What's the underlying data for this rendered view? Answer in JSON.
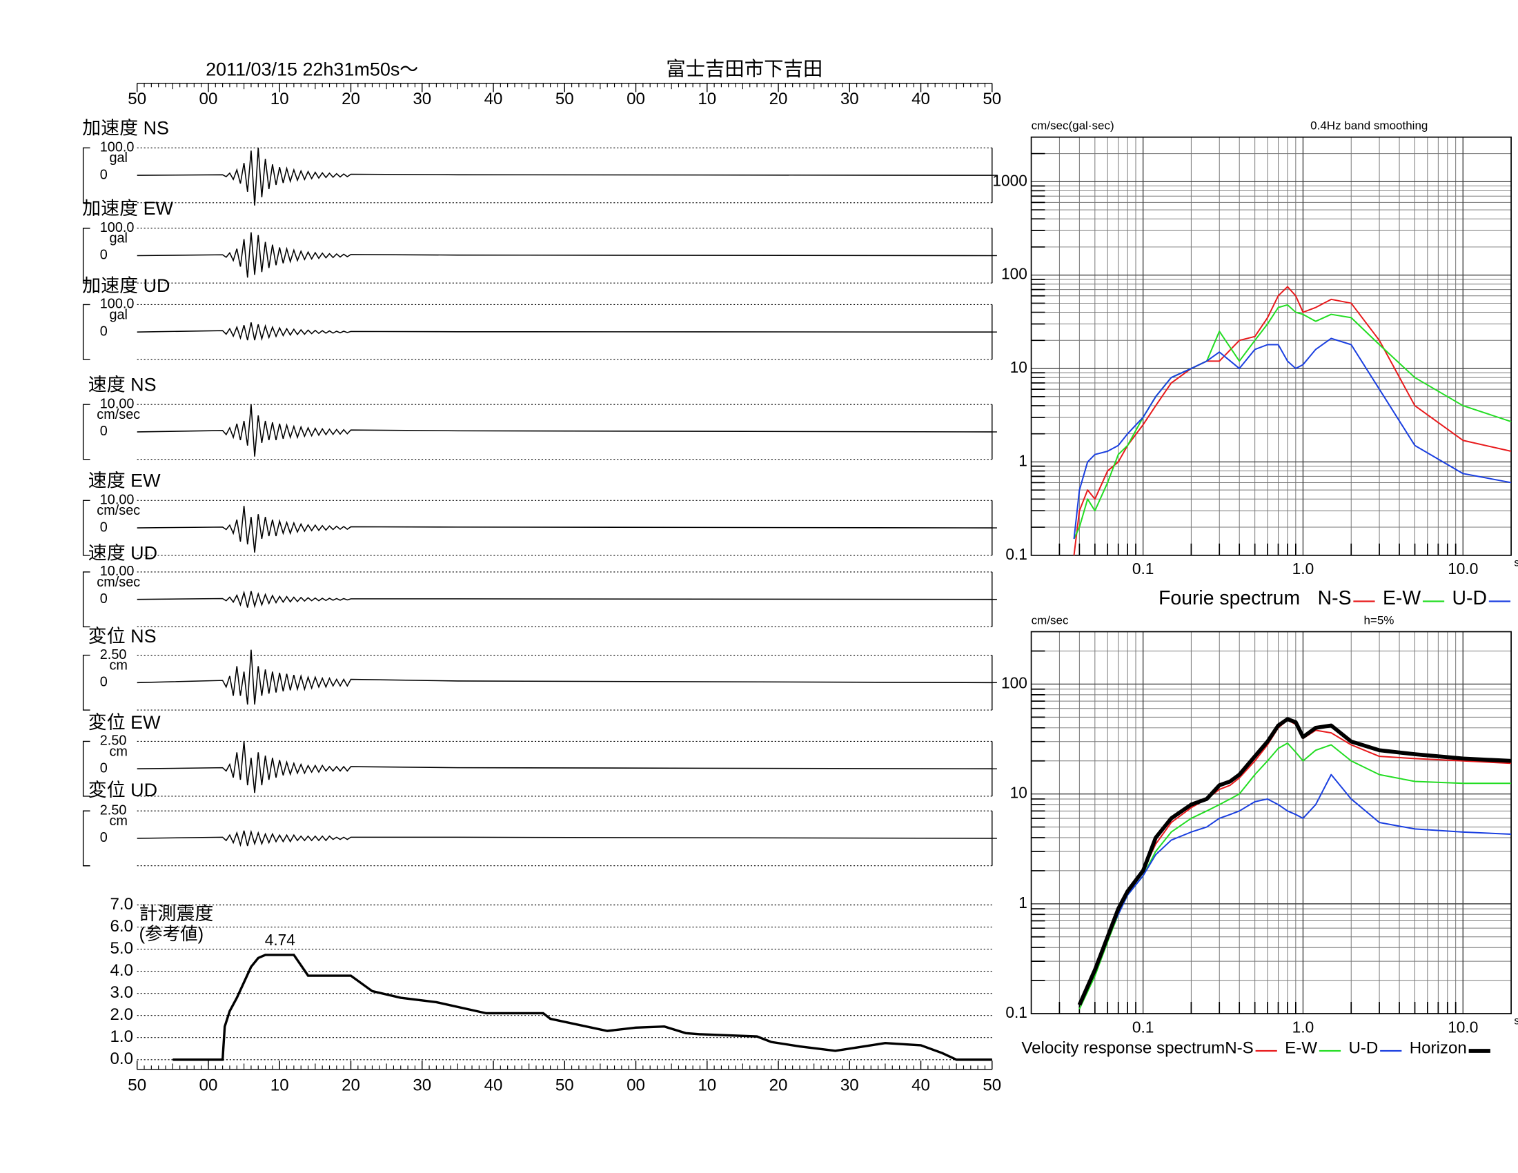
{
  "chart_data": [
    {
      "type": "waveform",
      "title": "2011/03/15  22h31m50s〜",
      "station": "富士吉田市下吉田",
      "xlim": [
        0,
        120
      ],
      "xticks": [
        {
          "value": 0,
          "label": "50"
        },
        {
          "value": 10,
          "label": "00"
        },
        {
          "value": 20,
          "label": "10"
        },
        {
          "value": 30,
          "label": "20"
        },
        {
          "value": 40,
          "label": "30"
        },
        {
          "value": 50,
          "label": "40"
        },
        {
          "value": 60,
          "label": "50"
        },
        {
          "value": 70,
          "label": "00"
        },
        {
          "value": 80,
          "label": "10"
        },
        {
          "value": 90,
          "label": "20"
        },
        {
          "value": 100,
          "label": "30"
        },
        {
          "value": 110,
          "label": "40"
        },
        {
          "value": 120,
          "label": "50"
        }
      ],
      "x": [
        0,
        12,
        12.5,
        13,
        13.5,
        14,
        14.5,
        15,
        15.5,
        16,
        16.5,
        17,
        17.5,
        18,
        18.5,
        19,
        19.5,
        20,
        20.5,
        21,
        21.5,
        22,
        22.5,
        23,
        23.5,
        24,
        24.5,
        25,
        25.5,
        26,
        26.5,
        27,
        27.5,
        28,
        28.5,
        29,
        29.5,
        30,
        45,
        120
      ],
      "panels": [
        {
          "label": "加速度 NS",
          "unit": "gal",
          "ylim": [
            -100,
            100
          ],
          "yticks": [
            {
              "value": 100,
              "label": "100.0"
            },
            0
          ],
          "values": [
            0,
            2,
            -5,
            8,
            -15,
            20,
            -30,
            45,
            -60,
            90,
            -110,
            100,
            -80,
            60,
            -50,
            40,
            -35,
            30,
            -28,
            25,
            -22,
            20,
            -18,
            16,
            -15,
            14,
            -12,
            11,
            -10,
            9,
            -8,
            8,
            -7,
            6,
            -6,
            5,
            -5,
            4,
            2,
            0
          ]
        },
        {
          "label": "加速度 EW",
          "unit": "gal",
          "ylim": [
            -100,
            100
          ],
          "yticks": [
            {
              "value": 100,
              "label": "100.0"
            },
            0
          ],
          "values": [
            0,
            3,
            -6,
            10,
            -18,
            25,
            -40,
            60,
            -80,
            85,
            -70,
            75,
            -60,
            50,
            -45,
            40,
            -35,
            30,
            -28,
            25,
            -22,
            20,
            -18,
            16,
            -14,
            13,
            -12,
            11,
            -10,
            9,
            -8,
            7,
            -7,
            6,
            -5,
            5,
            -4,
            4,
            2,
            0
          ]
        },
        {
          "label": "加速度 UD",
          "unit": "gal",
          "ylim": [
            -100,
            100
          ],
          "yticks": [
            {
              "value": 100,
              "label": "100.0"
            },
            0
          ],
          "values": [
            0,
            5,
            -8,
            12,
            -15,
            18,
            -22,
            25,
            -30,
            35,
            -30,
            28,
            -25,
            22,
            -20,
            18,
            -16,
            15,
            -13,
            12,
            -11,
            10,
            -9,
            8,
            -8,
            7,
            -6,
            6,
            -5,
            5,
            -4,
            4,
            -4,
            3,
            -3,
            3,
            -2,
            2,
            1,
            0
          ]
        },
        {
          "label": "速度 NS",
          "unit": "cm/sec",
          "ylim": [
            -10,
            10
          ],
          "yticks": [
            {
              "value": 10,
              "label": "10.00"
            },
            0
          ],
          "values": [
            0,
            0.5,
            -1,
            1.5,
            -2,
            3,
            -3,
            4,
            -5,
            10,
            -9,
            6,
            -4,
            4,
            -3,
            3.5,
            -3,
            3,
            -2.5,
            2.5,
            -2,
            2,
            -2,
            1.8,
            -1.6,
            1.5,
            -1.4,
            1.3,
            -1.2,
            1.1,
            -1,
            1,
            -0.9,
            0.9,
            -0.8,
            0.8,
            -0.7,
            0.7,
            0.4,
            0
          ]
        },
        {
          "label": "速度 EW",
          "unit": "cm/sec",
          "ylim": [
            -10,
            10
          ],
          "yticks": [
            {
              "value": 10,
              "label": "10.00"
            },
            0
          ],
          "values": [
            0,
            0.3,
            -0.6,
            1,
            -2,
            3,
            -5,
            8,
            -6,
            4,
            -9,
            5,
            -4,
            4,
            -3,
            3,
            -3,
            2.5,
            -2,
            2,
            -2,
            1.8,
            -1.5,
            1.4,
            -1.2,
            1.1,
            -1,
            1,
            -0.9,
            0.8,
            -0.8,
            0.7,
            -0.6,
            0.6,
            -0.5,
            0.5,
            -0.5,
            0.4,
            0.3,
            0
          ]
        },
        {
          "label": "速度 UD",
          "unit": "cm/sec",
          "ylim": [
            -10,
            10
          ],
          "yticks": [
            {
              "value": 10,
              "label": "10.00"
            },
            0
          ],
          "values": [
            0,
            0.3,
            -0.5,
            0.8,
            -1,
            1.5,
            -2,
            2.5,
            -3,
            3,
            -2.5,
            2,
            -2,
            1.8,
            -1.5,
            1.4,
            -1.2,
            1.1,
            -1,
            1,
            -0.9,
            0.8,
            -0.8,
            0.7,
            -0.6,
            0.6,
            -0.5,
            0.5,
            -0.5,
            0.4,
            -0.4,
            0.4,
            -0.3,
            0.3,
            -0.3,
            0.3,
            -0.2,
            0.2,
            0.2,
            0
          ]
        },
        {
          "label": "変位 NS",
          "unit": "cm",
          "ylim": [
            -2.5,
            2.5
          ],
          "yticks": [
            {
              "value": 2.5,
              "label": "2.50"
            },
            0
          ],
          "values": [
            0,
            0.2,
            -0.4,
            0.6,
            -1.2,
            1.5,
            -1.2,
            1,
            -2,
            3,
            -2,
            1.5,
            -1.2,
            1.2,
            -1,
            1,
            -0.9,
            0.9,
            -0.8,
            0.8,
            -0.7,
            0.7,
            -0.6,
            0.6,
            -0.6,
            0.5,
            -0.5,
            0.5,
            -0.4,
            0.4,
            -0.4,
            0.4,
            -0.3,
            0.3,
            -0.3,
            0.3,
            -0.3,
            0.3,
            0.15,
            0
          ]
        },
        {
          "label": "変位 EW",
          "unit": "cm",
          "ylim": [
            -2.5,
            2.5
          ],
          "yticks": [
            {
              "value": 2.5,
              "label": "2.50"
            },
            0
          ],
          "values": [
            0,
            0.1,
            -0.2,
            0.4,
            -0.8,
            1.5,
            -1,
            2.5,
            -1.5,
            1,
            -2.2,
            1.5,
            -1.5,
            1.2,
            -1,
            1,
            -0.8,
            0.8,
            -0.6,
            0.6,
            -0.5,
            0.5,
            -0.4,
            0.4,
            -0.4,
            0.3,
            -0.3,
            0.3,
            -0.3,
            0.3,
            -0.2,
            0.2,
            -0.2,
            0.2,
            -0.2,
            0.2,
            -0.2,
            0.2,
            0.1,
            0
          ]
        },
        {
          "label": "変位 UD",
          "unit": "cm",
          "ylim": [
            -2.5,
            2.5
          ],
          "yticks": [
            {
              "value": 2.5,
              "label": "2.50"
            },
            0
          ],
          "values": [
            0,
            0.1,
            -0.2,
            0.3,
            -0.4,
            0.5,
            -0.6,
            0.7,
            -0.7,
            0.6,
            -0.5,
            0.5,
            -0.5,
            0.4,
            -0.4,
            0.4,
            -0.3,
            0.3,
            -0.3,
            0.3,
            -0.3,
            0.3,
            -0.2,
            0.2,
            -0.2,
            0.2,
            -0.2,
            0.2,
            -0.2,
            0.2,
            -0.2,
            0.2,
            -0.1,
            0.1,
            -0.1,
            0.1,
            -0.1,
            0.1,
            0.1,
            0
          ]
        }
      ]
    },
    {
      "type": "intensity",
      "title": "計測震度",
      "subtitle": "(参考値)",
      "peak": 4.74,
      "xlim": [
        0,
        120
      ],
      "xticks": [
        {
          "value": 0,
          "label": "50"
        },
        {
          "value": 10,
          "label": "00"
        },
        {
          "value": 20,
          "label": "10"
        },
        {
          "value": 30,
          "label": "20"
        },
        {
          "value": 40,
          "label": "30"
        },
        {
          "value": 50,
          "label": "40"
        },
        {
          "value": 60,
          "label": "50"
        },
        {
          "value": 70,
          "label": "00"
        },
        {
          "value": 80,
          "label": "10"
        },
        {
          "value": 90,
          "label": "20"
        },
        {
          "value": 100,
          "label": "30"
        },
        {
          "value": 110,
          "label": "40"
        },
        {
          "value": 120,
          "label": "50"
        }
      ],
      "ylim": [
        0,
        7
      ],
      "yticks": [
        {
          "value": 0,
          "label": "0.0"
        },
        {
          "value": 1,
          "label": "1.0"
        },
        {
          "value": 2,
          "label": "2.0"
        },
        {
          "value": 3,
          "label": "3.0"
        },
        {
          "value": 4,
          "label": "4.0"
        },
        {
          "value": 5,
          "label": "5.0"
        },
        {
          "value": 6,
          "label": "6.0"
        },
        {
          "value": 7,
          "label": "7.0"
        }
      ],
      "x": [
        5,
        12,
        12.3,
        13,
        14,
        15,
        16,
        17,
        18,
        22,
        24,
        30,
        33,
        37,
        42,
        49,
        52,
        57,
        58,
        66,
        70,
        74,
        77,
        79,
        87,
        89,
        93,
        98,
        102,
        105,
        110,
        113,
        115,
        120
      ],
      "values": [
        0,
        0,
        1.5,
        2.2,
        2.8,
        3.5,
        4.2,
        4.6,
        4.74,
        4.74,
        3.8,
        3.8,
        3.1,
        2.8,
        2.6,
        2.1,
        2.1,
        2.1,
        1.85,
        1.3,
        1.45,
        1.5,
        1.2,
        1.15,
        1.05,
        0.8,
        0.6,
        0.4,
        0.6,
        0.75,
        0.65,
        0.3,
        0,
        0
      ]
    },
    {
      "type": "spectrum",
      "title": "Fourie spectrum",
      "ylabel": "cm/sec(gal·sec)",
      "note": "0.4Hz band smoothing",
      "xlabel": "sec",
      "log": true,
      "grid": true,
      "xlim": [
        0.02,
        20
      ],
      "ylim": [
        0.1,
        3000
      ],
      "xticks": [
        0.1,
        {
          "value": 1,
          "label": "1.0"
        },
        {
          "value": 10,
          "label": "10.0"
        }
      ],
      "yticks": [
        0.1,
        1,
        10,
        100,
        1000
      ],
      "x": [
        0.037,
        0.04,
        0.045,
        0.05,
        0.06,
        0.07,
        0.08,
        0.1,
        0.12,
        0.15,
        0.2,
        0.25,
        0.3,
        0.4,
        0.5,
        0.6,
        0.7,
        0.8,
        0.9,
        1.0,
        1.2,
        1.5,
        2,
        3,
        5,
        10,
        20
      ],
      "series": [
        {
          "name": "N-S",
          "color": "#e8191b",
          "values": [
            0.1,
            0.3,
            0.5,
            0.4,
            0.8,
            1.0,
            1.5,
            2.5,
            4,
            7,
            10,
            12,
            12,
            20,
            22,
            35,
            60,
            75,
            60,
            40,
            45,
            55,
            50,
            20,
            4,
            1.7,
            1.3
          ]
        },
        {
          "name": "E-W",
          "color": "#22dd22",
          "values": [
            0.15,
            0.2,
            0.4,
            0.3,
            0.6,
            1.2,
            1.5,
            3,
            5,
            8,
            10,
            12,
            25,
            12,
            20,
            30,
            45,
            48,
            40,
            38,
            32,
            38,
            35,
            18,
            8,
            4,
            2.7
          ]
        },
        {
          "name": "U-D",
          "color": "#1a3fe0",
          "values": [
            0.15,
            0.5,
            1.0,
            1.2,
            1.3,
            1.5,
            2,
            3,
            5,
            8,
            10,
            12,
            15,
            10,
            16,
            18,
            18,
            12,
            10,
            11,
            16,
            21,
            18,
            6,
            1.5,
            0.75,
            0.6
          ]
        }
      ]
    },
    {
      "type": "spectrum",
      "title": "Velocity response spectrum",
      "ylabel": "cm/sec",
      "note": "h=5%",
      "xlabel": "sec",
      "log": true,
      "grid": true,
      "xlim": [
        0.02,
        20
      ],
      "ylim": [
        0.1,
        300
      ],
      "xticks": [
        0.1,
        {
          "value": 1,
          "label": "1.0"
        },
        {
          "value": 10,
          "label": "10.0"
        }
      ],
      "yticks": [
        0.1,
        1,
        10,
        100
      ],
      "x": [
        0.04,
        0.05,
        0.06,
        0.07,
        0.08,
        0.1,
        0.12,
        0.15,
        0.2,
        0.25,
        0.3,
        0.35,
        0.4,
        0.5,
        0.6,
        0.7,
        0.8,
        0.9,
        1.0,
        1.2,
        1.5,
        2,
        3,
        5,
        10,
        20
      ],
      "series": [
        {
          "name": "N-S",
          "color": "#e8191b",
          "values": [
            0.12,
            0.25,
            0.5,
            0.9,
            1.3,
            2,
            3.5,
            5.5,
            7.5,
            9,
            11,
            12,
            14,
            20,
            28,
            40,
            47,
            43,
            32,
            38,
            36,
            28,
            22,
            21,
            20,
            19
          ]
        },
        {
          "name": "E-W",
          "color": "#22dd22",
          "values": [
            0.11,
            0.22,
            0.45,
            0.8,
            1.2,
            1.8,
            3,
            4.5,
            6,
            7,
            8,
            9,
            10,
            15,
            20,
            26,
            29,
            24,
            20,
            25,
            28,
            20,
            15,
            13,
            12.5,
            12.5
          ]
        },
        {
          "name": "U-D",
          "color": "#1a3fe0",
          "values": [
            0.12,
            0.25,
            0.5,
            0.8,
            1.2,
            1.8,
            2.8,
            3.8,
            4.5,
            5,
            6,
            6.5,
            7,
            8.5,
            9,
            8,
            7,
            6.5,
            6,
            8,
            15,
            9,
            5.5,
            4.8,
            4.5,
            4.3
          ]
        },
        {
          "name": "Horizon",
          "color": "#000000",
          "bold": true,
          "values": [
            0.12,
            0.25,
            0.5,
            0.9,
            1.3,
            2,
            4,
            6,
            8,
            9,
            12,
            13,
            15,
            22,
            30,
            42,
            48,
            45,
            33,
            40,
            42,
            30,
            25,
            23,
            21,
            20
          ]
        }
      ]
    }
  ]
}
